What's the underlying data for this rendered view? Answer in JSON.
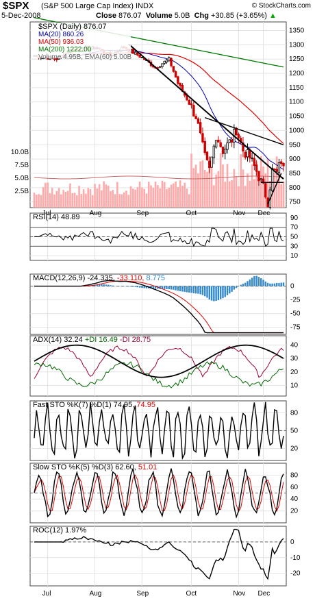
{
  "header": {
    "symbol": "$SPX",
    "name": "(S&P 500 Large Cap Index) INDX",
    "copyright": "© StockCharts.com",
    "date": "5-Dec-2008",
    "close_label": "Close",
    "close": "876.07",
    "volume_label": "Volume",
    "volume": "5.0B",
    "chg_label": "Chg",
    "chg": "+30.85 (+3.65%)",
    "chg_arrow": "▲"
  },
  "colors": {
    "price_up": "#000000",
    "price_down": "#cc0000",
    "ma20": "#0000aa",
    "ma50": "#dd0000",
    "ma200": "#007700",
    "volume": "#ffaaaa",
    "hist": "#3388cc",
    "plusdi": "#006600",
    "minusdi": "#990033"
  },
  "chart_data": [
    {
      "type": "candlestick",
      "title": "$SPX (Daily) 876.07",
      "legend": [
        "$SPX (Daily) 876.07",
        "MA(20) 860.26",
        "MA(50) 936.03",
        "MA(200) 1222.00",
        "Volume 4.95B, EMA(60) 5.00B"
      ],
      "ylim": [
        730,
        1380
      ],
      "yticks": [
        750,
        800,
        850,
        900,
        950,
        1000,
        1050,
        1100,
        1150,
        1200,
        1250,
        1300,
        1350
      ],
      "volume_ticks": [
        "10.0B",
        "7.5B",
        "5.0B",
        "2.5B"
      ],
      "months": [
        "Jul",
        "Aug",
        "Sep",
        "Oct",
        "Nov",
        "Dec"
      ],
      "monthly_close": {
        "Jul": 1267,
        "Aug": 1282,
        "Sep": 1166,
        "Oct": 968,
        "Nov": 896,
        "Dec": 876
      },
      "ma200_start": 1395,
      "ma200_end": 1222,
      "trendlines": true
    },
    {
      "type": "line",
      "title": "RSI(14) 48.89",
      "yticks": [
        10,
        30,
        50,
        70,
        90
      ],
      "last": 48.89
    },
    {
      "type": "line",
      "title": "MACD(12,26,9) -24.335, -33.110, 8.775",
      "yticks": [
        0,
        -25,
        -50,
        -75
      ],
      "macd": -24.335,
      "signal": -33.11,
      "histogram": 8.775
    },
    {
      "type": "line",
      "title": "ADX(14) 32.24 +DI 16.49 -DI 28.75",
      "yticks": [
        10,
        20,
        30,
        40
      ],
      "adx": 32.24,
      "plus_di": 16.49,
      "minus_di": 28.75
    },
    {
      "type": "line",
      "title": "Fast STO %K(7) %D(1) 74.95, 74.95",
      "yticks": [
        20,
        50,
        80
      ],
      "k": 74.95,
      "d": 74.95
    },
    {
      "type": "line",
      "title": "Slow STO %K(5) %D(3) 62.60, 51.01",
      "yticks": [
        20,
        40,
        60,
        80
      ],
      "k": 62.6,
      "d": 51.01
    },
    {
      "type": "line",
      "title": "ROC(12) 1.97%",
      "yticks": [
        0,
        -10,
        -20
      ],
      "last": 1.97
    }
  ],
  "title_parts": {
    "p1": [
      "$SPX (Daily) 876.07"
    ],
    "ma20": "MA(20) 860.26",
    "ma50": "MA(50) 936.03",
    "ma200": "MA(200) 1222.00",
    "vol": "Volume 4.95B, EMA(60) 5.00B",
    "rsi": "RSI(14) 48.89",
    "macd_a": "MACD(12,26,9) -24.335, ",
    "macd_b": "-33.110, ",
    "macd_c": "8.775",
    "adx_a": "ADX(14) 32.24 ",
    "adx_b": "+DI 16.49 ",
    "adx_c": "-DI 28.75",
    "fsto_a": "Fast STO %K(7) %D(1) 74.95, ",
    "fsto_b": "74.95",
    "ssto_a": "Slow STO %K(5) %D(3) 62.60, ",
    "ssto_b": "51.01",
    "roc": "ROC(12) 1.97%"
  }
}
